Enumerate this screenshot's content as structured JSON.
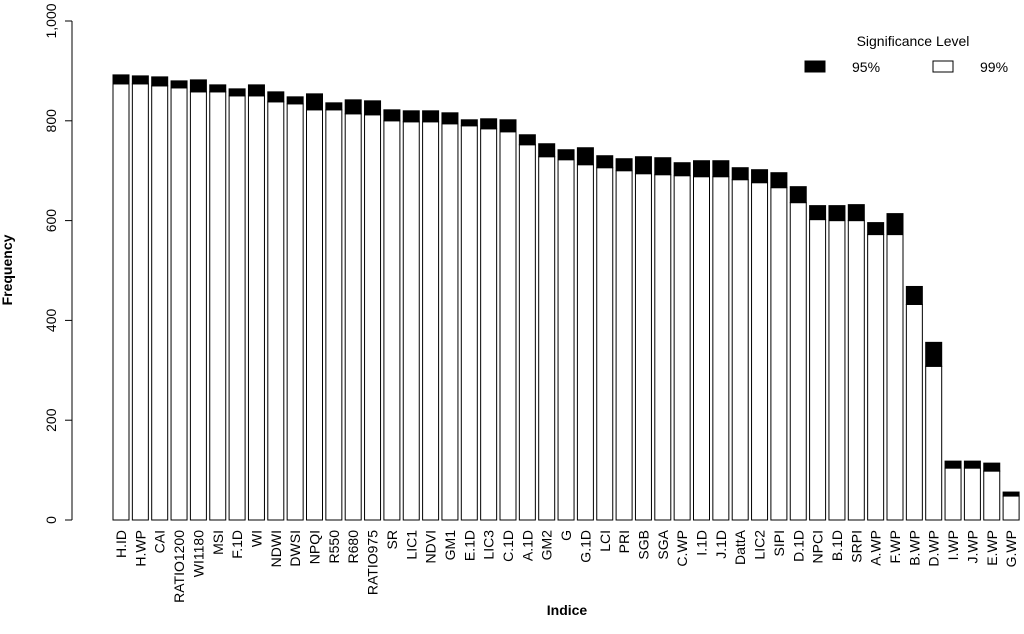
{
  "chart_data": {
    "type": "stacked-bar",
    "x_label": "Indice",
    "y_label": "Frequency",
    "legend_title": "Significance Level",
    "categories": [
      "H.ID",
      "H.WP",
      "CAI",
      "RATIO1200",
      "WI1180",
      "MSI",
      "F.1D",
      "WI",
      "NDWI",
      "DWSI",
      "NPQI",
      "R550",
      "R680",
      "RATIO975",
      "SR",
      "LIC1",
      "NDVI",
      "GM1",
      "E.1D",
      "LIC3",
      "C.1D",
      "A.1D",
      "GM2",
      "G",
      "G.1D",
      "LCI",
      "PRI",
      "SGB",
      "SGA",
      "C.WP",
      "I.1D",
      "J.1D",
      "DattA",
      "LIC2",
      "SIPI",
      "D.1D",
      "NPCI",
      "B.1D",
      "SRPI",
      "A.WP",
      "F.WP",
      "B.WP",
      "D.WP",
      "I.WP",
      "J.WP",
      "E.WP",
      "G.WP"
    ],
    "series": [
      {
        "name": "99%",
        "color": "#ffffff",
        "values": [
          874,
          874,
          870,
          866,
          858,
          858,
          850,
          850,
          838,
          834,
          822,
          822,
          814,
          812,
          800,
          798,
          798,
          794,
          790,
          784,
          778,
          752,
          728,
          722,
          712,
          706,
          700,
          694,
          692,
          690,
          688,
          688,
          682,
          676,
          666,
          636,
          602,
          600,
          600,
          572,
          572,
          432,
          308,
          104,
          104,
          98,
          48
        ]
      },
      {
        "name": "95%",
        "color": "#000000",
        "values": [
          18,
          16,
          18,
          14,
          24,
          14,
          14,
          22,
          20,
          14,
          32,
          14,
          28,
          28,
          22,
          22,
          22,
          22,
          12,
          20,
          24,
          20,
          26,
          20,
          34,
          24,
          24,
          34,
          34,
          26,
          32,
          32,
          24,
          26,
          30,
          32,
          28,
          30,
          32,
          24,
          42,
          36,
          48,
          14,
          14,
          16,
          8
        ]
      }
    ],
    "ylim": [
      0,
      1000
    ],
    "yticks": [
      0,
      200,
      400,
      600,
      800,
      {
        "value": 1000,
        "label": "1,000"
      }
    ]
  }
}
